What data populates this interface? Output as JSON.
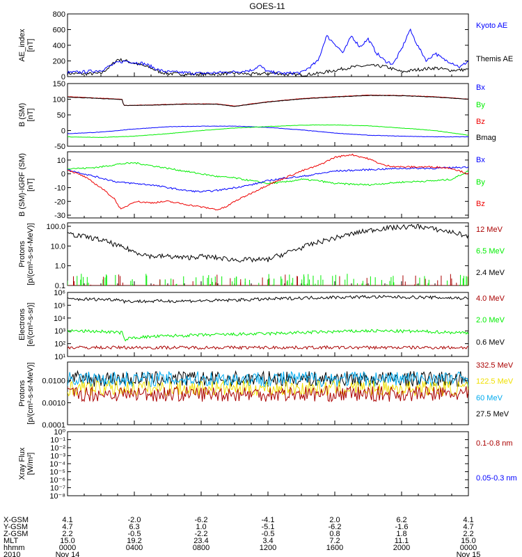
{
  "title": "GOES-11",
  "colors": {
    "black": "#000000",
    "blue": "#0000ff",
    "green": "#00ee00",
    "red": "#ee0000",
    "darkred": "#aa0000",
    "cyan": "#00aaee",
    "yellow": "#f0e000",
    "teal": "#00b0b0"
  },
  "chart_data": [
    {
      "type": "line",
      "ylabel": "AE_index\n[nT]",
      "yticks": [
        "0",
        "200",
        "400",
        "600",
        "800"
      ],
      "ylim": [
        0,
        800
      ],
      "legend": [
        {
          "name": "Kyoto AE",
          "color": "blue"
        },
        {
          "name": "Themis AE",
          "color": "black"
        }
      ],
      "series": [
        {
          "name": "Themis AE",
          "color": "black",
          "x": [
            0,
            1,
            2,
            2.5,
            3,
            3.5,
            4,
            4.5,
            5,
            5.5,
            6,
            7,
            8,
            9,
            10,
            11,
            12,
            12.5,
            13,
            14,
            15,
            16,
            17,
            18,
            19,
            20,
            21,
            22,
            23,
            24
          ],
          "y": [
            40,
            35,
            40,
            120,
            220,
            200,
            170,
            140,
            110,
            60,
            40,
            30,
            30,
            35,
            45,
            30,
            40,
            45,
            30,
            20,
            40,
            80,
            120,
            140,
            130,
            60,
            90,
            110,
            80,
            90
          ]
        },
        {
          "name": "Kyoto AE",
          "color": "blue",
          "x": [
            0,
            1,
            2,
            2.5,
            3,
            3.5,
            4,
            4.5,
            5,
            5.5,
            6,
            7,
            8,
            9,
            10,
            11,
            11.5,
            12,
            13,
            14,
            14.5,
            15,
            15.5,
            16,
            16.5,
            17,
            17.5,
            18,
            18.5,
            19,
            19.5,
            20,
            20.5,
            21,
            21.5,
            22,
            22.5,
            23,
            23.5,
            24
          ],
          "y": [
            50,
            60,
            80,
            130,
            180,
            200,
            180,
            170,
            130,
            80,
            60,
            50,
            40,
            50,
            60,
            80,
            140,
            60,
            40,
            50,
            120,
            200,
            520,
            420,
            300,
            520,
            380,
            480,
            300,
            200,
            160,
            350,
            600,
            380,
            200,
            300,
            220,
            180,
            120,
            200
          ]
        }
      ]
    },
    {
      "type": "line",
      "ylabel": "B (SM)\n[nT]",
      "yticks": [
        "-50",
        "0",
        "50",
        "100",
        "150"
      ],
      "ylim": [
        -50,
        150
      ],
      "legend": [
        {
          "name": "Bx",
          "color": "blue"
        },
        {
          "name": "By",
          "color": "green"
        },
        {
          "name": "Bz",
          "color": "red"
        },
        {
          "name": "Bmag",
          "color": "black"
        }
      ],
      "series": [
        {
          "name": "Bz",
          "color": "red",
          "x": [
            0,
            2,
            3.3,
            3.35,
            5,
            7,
            9,
            10,
            12,
            14,
            16,
            18,
            20,
            22,
            24
          ],
          "y": [
            108,
            103,
            100,
            80,
            82,
            85,
            85,
            78,
            92,
            102,
            108,
            113,
            112,
            108,
            100
          ]
        },
        {
          "name": "Bmag",
          "color": "black",
          "x": [
            0,
            2,
            3.3,
            3.35,
            5,
            7,
            9,
            10,
            12,
            14,
            16,
            18,
            20,
            22,
            24
          ],
          "y": [
            107,
            102,
            99,
            80,
            81,
            84,
            84,
            77,
            91,
            101,
            107,
            112,
            111,
            107,
            100
          ]
        },
        {
          "name": "Bx",
          "color": "blue",
          "x": [
            0,
            2,
            4,
            6,
            8,
            10,
            12,
            14,
            16,
            18,
            20,
            22,
            24
          ],
          "y": [
            -10,
            -5,
            5,
            12,
            14,
            14,
            10,
            2,
            -8,
            -15,
            -18,
            -20,
            -20
          ]
        },
        {
          "name": "By",
          "color": "green",
          "x": [
            0,
            2,
            4,
            6,
            8,
            10,
            12,
            14,
            15,
            16,
            18,
            20,
            22,
            24
          ],
          "y": [
            -20,
            -22,
            -18,
            -10,
            0,
            8,
            13,
            17,
            18,
            18,
            15,
            8,
            0,
            -15
          ]
        }
      ]
    },
    {
      "type": "line",
      "ylabel": "B (SM)-IGRF (SM)\n[nT]",
      "yticks": [
        "-30",
        "-20",
        "-10",
        "0",
        "10"
      ],
      "ylim": [
        -32,
        16
      ],
      "legend": [
        {
          "name": "Bx",
          "color": "blue"
        },
        {
          "name": "By",
          "color": "green"
        },
        {
          "name": "Bz",
          "color": "red"
        }
      ],
      "series": [
        {
          "name": "By",
          "color": "green",
          "x": [
            0,
            1,
            2,
            3,
            4,
            5,
            6,
            7,
            8,
            9,
            10,
            11,
            12,
            13,
            14,
            15,
            16,
            18,
            20,
            22,
            23,
            24
          ],
          "y": [
            4,
            4,
            5,
            7,
            8,
            6,
            4,
            2,
            0,
            -2,
            -3,
            -5,
            -7,
            -6,
            -4,
            -5,
            -7,
            -8,
            -6,
            -5,
            -4,
            2
          ]
        },
        {
          "name": "Bx",
          "color": "blue",
          "x": [
            0,
            1,
            2,
            3,
            4,
            5,
            6,
            7,
            8,
            9,
            10,
            11,
            12,
            13,
            14,
            15,
            16,
            18,
            20,
            22,
            24
          ],
          "y": [
            3,
            0,
            -3,
            -6,
            -7,
            -8,
            -10,
            -12,
            -13,
            -12,
            -10,
            -8,
            -5,
            -3,
            -2,
            0,
            2,
            3,
            4,
            4,
            5
          ]
        },
        {
          "name": "Bz",
          "color": "red",
          "x": [
            0,
            1,
            2,
            2.8,
            3.2,
            4,
            5,
            6,
            7,
            8,
            9,
            9.5,
            10,
            11,
            12,
            13,
            14,
            15,
            16,
            17,
            18,
            19,
            20,
            21,
            22,
            23,
            24
          ],
          "y": [
            3,
            -2,
            -10,
            -18,
            -26,
            -20,
            -21,
            -20,
            -22,
            -24,
            -26,
            -24,
            -20,
            -14,
            -8,
            -3,
            2,
            6,
            12,
            14,
            11,
            6,
            5,
            5,
            5,
            4,
            0
          ]
        }
      ]
    },
    {
      "type": "line",
      "ylabel": "Protons\n[p/(cm²-s-sr-MeV)]",
      "yscale": "log",
      "yticks": [
        "0.1",
        "1.0",
        "10.0",
        "100.0"
      ],
      "ylim": [
        0.1,
        150
      ],
      "legend": [
        {
          "name": "12 MeV",
          "color": "darkred"
        },
        {
          "name": "6.5 MeV",
          "color": "green"
        },
        {
          "name": "2.4 MeV",
          "color": "black"
        }
      ],
      "series": [
        {
          "name": "2.4 MeV",
          "color": "black",
          "x": [
            0,
            1,
            2,
            3,
            4,
            5,
            6,
            7,
            8,
            9,
            10,
            11,
            12,
            13,
            14,
            15,
            16,
            17,
            18,
            19,
            20,
            21,
            22,
            23,
            24
          ],
          "y": [
            40,
            30,
            20,
            10,
            5,
            3,
            3,
            2.5,
            3,
            2.5,
            2,
            2,
            2,
            4,
            8,
            15,
            25,
            40,
            60,
            80,
            90,
            100,
            70,
            50,
            30
          ]
        },
        {
          "name": "6.5 MeV",
          "color": "green",
          "x": [
            0,
            24
          ],
          "y": [
            0.1,
            0.1
          ]
        },
        {
          "name": "12 MeV",
          "color": "darkred",
          "x": [
            0,
            24
          ],
          "y": [
            0.1,
            0.1
          ]
        }
      ]
    },
    {
      "type": "line",
      "ylabel": "Electrons\n[e/(cm²-s-sr)]",
      "yscale": "log",
      "yticks": [
        "10¹",
        "10²",
        "10³",
        "10⁴",
        "10⁵",
        "10⁶"
      ],
      "ylim": [
        10,
        1000000
      ],
      "legend": [
        {
          "name": "4.0 MeV",
          "color": "darkred"
        },
        {
          "name": "2.0 MeV",
          "color": "green"
        },
        {
          "name": "0.6 MeV",
          "color": "black"
        }
      ],
      "series": [
        {
          "name": "0.6 MeV",
          "color": "black",
          "x": [
            0,
            3.3,
            3.35,
            6,
            9,
            12,
            15,
            18,
            21,
            24
          ],
          "y": [
            300000,
            280000,
            200000,
            210000,
            230000,
            300000,
            400000,
            450000,
            420000,
            350000
          ]
        },
        {
          "name": "2.0 MeV",
          "color": "green",
          "x": [
            0,
            2,
            3.3,
            3.35,
            4,
            6,
            9,
            12,
            15,
            18,
            21,
            24
          ],
          "y": [
            1000,
            900,
            700,
            200,
            300,
            400,
            500,
            600,
            800,
            1000,
            900,
            700
          ]
        },
        {
          "name": "4.0 MeV",
          "color": "darkred",
          "x": [
            0,
            24
          ],
          "y": [
            50,
            50
          ]
        }
      ]
    },
    {
      "type": "line",
      "ylabel": "Protons\n[p/(cm²-s-sr-MeV)]",
      "yscale": "log",
      "yticks": [
        "0.0001",
        "0.0010",
        "0.0100"
      ],
      "ylim": [
        0.0001,
        0.07
      ],
      "legend": [
        {
          "name": "332.5 MeV",
          "color": "darkred"
        },
        {
          "name": "122.5 MeV",
          "color": "yellow"
        },
        {
          "name": "60 MeV",
          "color": "cyan"
        },
        {
          "name": "27.5 MeV",
          "color": "black"
        }
      ],
      "series": [
        {
          "name": "27.5 MeV",
          "color": "black",
          "x": [
            0,
            24
          ],
          "y": [
            0.012,
            0.012
          ]
        },
        {
          "name": "60 MeV",
          "color": "cyan",
          "x": [
            0,
            24
          ],
          "y": [
            0.012,
            0.012
          ]
        },
        {
          "name": "122.5 MeV",
          "color": "yellow",
          "x": [
            0,
            24
          ],
          "y": [
            0.0045,
            0.0045
          ]
        },
        {
          "name": "332.5 MeV",
          "color": "darkred",
          "x": [
            0,
            24
          ],
          "y": [
            0.0025,
            0.0025
          ]
        }
      ]
    },
    {
      "type": "line",
      "ylabel": "Xray Flux\n[W/m²]",
      "yscale": "log",
      "yticks": [
        "10⁻⁸",
        "10⁻⁷",
        "10⁻⁶",
        "10⁻⁵",
        "10⁻⁴",
        "10⁻³",
        "10⁻²",
        "10⁻¹",
        "10⁰"
      ],
      "ylim": [
        1e-08,
        1
      ],
      "legend": [
        {
          "name": "0.1-0.8 nm",
          "color": "darkred"
        },
        {
          "name": "0.05-0.3 nm",
          "color": "blue"
        }
      ],
      "series": []
    }
  ],
  "xaxis": {
    "range_hours": [
      0,
      24
    ],
    "tick_hours": [
      0,
      4,
      8,
      12,
      16,
      20,
      24
    ],
    "rows": [
      {
        "label": "X-GSM",
        "values": [
          "4.1",
          "-2.0",
          "-6.2",
          "-4.1",
          "2.0",
          "6.2",
          "4.1"
        ]
      },
      {
        "label": "Y-GSM",
        "values": [
          "4.7",
          "6.3",
          "1.0",
          "-5.1",
          "-6.2",
          "-1.6",
          "4.7"
        ]
      },
      {
        "label": "Z-GSM",
        "values": [
          "2.2",
          "-0.5",
          "-2.2",
          "-0.5",
          "0.8",
          "1.8",
          "2.2"
        ]
      },
      {
        "label": "MLT",
        "values": [
          "15.0",
          "19.2",
          "23.4",
          "3.4",
          "7.2",
          "11.1",
          "15.0"
        ]
      },
      {
        "label": "hhmm",
        "values": [
          "0000",
          "0400",
          "0800",
          "1200",
          "1600",
          "2000",
          "0000"
        ]
      },
      {
        "label": "2010",
        "values": [
          "Nov 14",
          "",
          "",
          "",
          "",
          "",
          "Nov 15"
        ]
      }
    ]
  }
}
